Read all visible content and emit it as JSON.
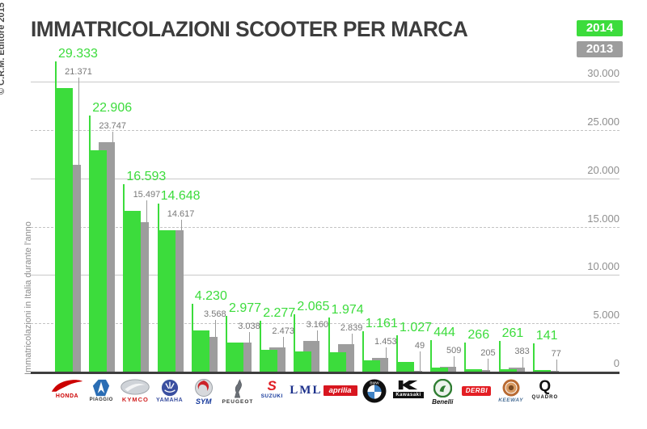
{
  "copyright": "© C.R.M. Editore 2015",
  "title": "IMMATRICOLAZIONI SCOOTER PER MARCA",
  "legend": [
    {
      "label": "2014",
      "color": "#3cdc3c"
    },
    {
      "label": "2013",
      "color": "#9d9d9d"
    }
  ],
  "y_axis": {
    "title": "Immatricolazioni in Italia durante l'anno",
    "ticks": [
      {
        "label": "30.000",
        "value": 30000
      },
      {
        "label": "25.000",
        "value": 25000
      },
      {
        "label": "20.000",
        "value": 20000
      },
      {
        "label": "15.000",
        "value": 15000
      },
      {
        "label": "10.000",
        "value": 10000
      },
      {
        "label": "5.000",
        "value": 5000
      },
      {
        "label": "0",
        "value": 0
      }
    ]
  },
  "chart_data": {
    "type": "bar",
    "title": "IMMATRICOLAZIONI SCOOTER PER MARCA",
    "ylabel": "Immatricolazioni in Italia durante l'anno",
    "ylim": [
      0,
      30000
    ],
    "grid": true,
    "legend_position": "top-right",
    "categories": [
      "HONDA",
      "PIAGGIO",
      "KYMCO",
      "YAMAHA",
      "SYM",
      "PEUGEOT",
      "SUZUKI",
      "LML",
      "aprilia",
      "BMW",
      "Kawasaki",
      "Benelli",
      "DERBI",
      "KEEWAY",
      "QUADRO"
    ],
    "series": [
      {
        "name": "2014",
        "color": "#3cdc3c",
        "values": [
          29333,
          22906,
          16593,
          14648,
          4230,
          2977,
          2277,
          2065,
          1974,
          1161,
          1027,
          444,
          266,
          261,
          141
        ],
        "labels": [
          "29.333",
          "22.906",
          "16.593",
          "14.648",
          "4.230",
          "2.977",
          "2.277",
          "2.065",
          "1.974",
          "1.161",
          "1.027",
          "444",
          "266",
          "261",
          "141"
        ]
      },
      {
        "name": "2013",
        "color": "#9d9d9d",
        "values": [
          21371,
          23747,
          15497,
          14617,
          3568,
          3038,
          2473,
          3160,
          2839,
          1453,
          49,
          509,
          205,
          383,
          77
        ],
        "labels": [
          "21.371",
          "23.747",
          "15.497",
          "14.617",
          "3.568",
          "3.038",
          "2.473",
          "3.160",
          "2.839",
          "1.453",
          "49",
          "509",
          "205",
          "383",
          "77"
        ]
      }
    ]
  },
  "brands": [
    {
      "key": "honda",
      "label": "HONDA"
    },
    {
      "key": "piaggio",
      "label": "PIAGGIO"
    },
    {
      "key": "kymco",
      "label": "KYMCO"
    },
    {
      "key": "yamaha",
      "label": "YAMAHA"
    },
    {
      "key": "sym",
      "label": "SYM"
    },
    {
      "key": "peugeot",
      "label": "PEUGEOT"
    },
    {
      "key": "suzuki",
      "label": "SUZUKI"
    },
    {
      "key": "lml",
      "label": "LML"
    },
    {
      "key": "aprilia",
      "label": "aprilia"
    },
    {
      "key": "bmw",
      "label": "BMW"
    },
    {
      "key": "kawasaki",
      "label": "Kawasaki"
    },
    {
      "key": "benelli",
      "label": "Benelli"
    },
    {
      "key": "derbi",
      "label": "DERBI"
    },
    {
      "key": "keeway",
      "label": "KEEWAY"
    },
    {
      "key": "quadro",
      "label": "QUADRO"
    }
  ]
}
